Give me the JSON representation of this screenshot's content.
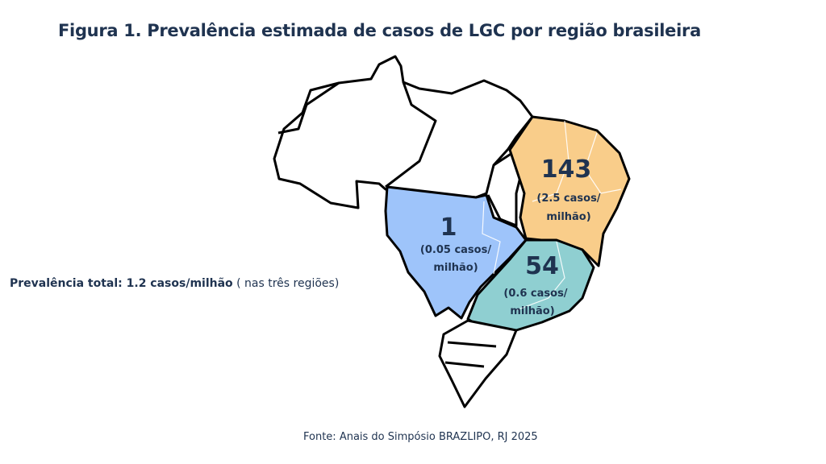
{
  "title": "Figura 1. Prevalência estimada de casos de LGC por região brasileira",
  "total": {
    "label": "Prevalência total: 1.2 casos/milhão",
    "note": "( nas três regiões)"
  },
  "source": "Fonte: Anais do Simpósio BRAZLIPO, RJ 2025",
  "regions": {
    "northeast": {
      "count": "143",
      "rate_line1": "(2.5 casos/",
      "rate_line2": "milhão)",
      "color": "#F9CD8A"
    },
    "centerwest": {
      "count": "1",
      "rate_line1": "(0.05 casos/",
      "rate_line2": "milhão)",
      "color": "#9EC4FA"
    },
    "southeast": {
      "count": "54",
      "rate_line1": "(0.6 casos/",
      "rate_line2": "milhão)",
      "color": "#8FCFD1"
    },
    "north": {
      "color": "#FFFFFF"
    },
    "south": {
      "color": "#FFFFFF"
    }
  }
}
